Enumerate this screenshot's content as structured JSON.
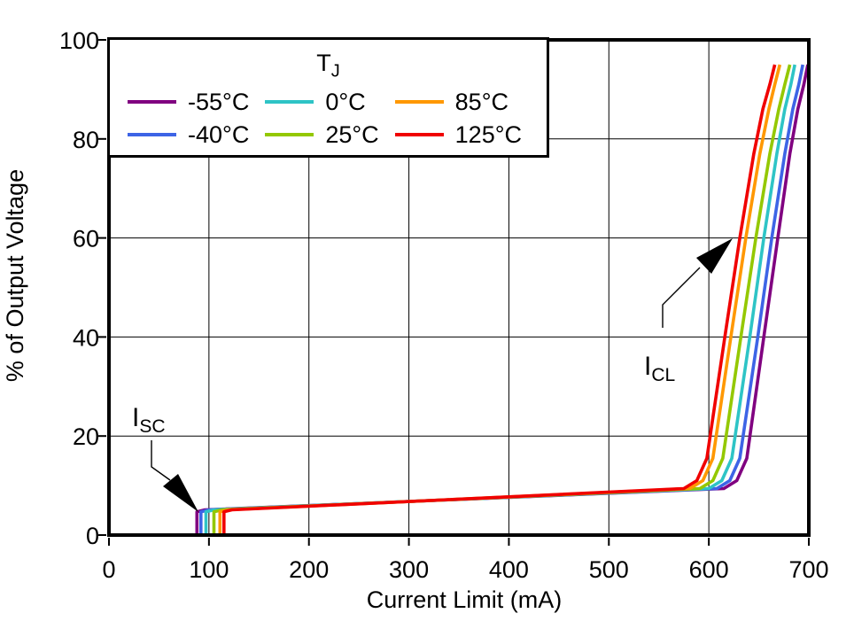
{
  "figure": {
    "background": "#ffffff",
    "axis_color": "#000000"
  },
  "chart_data": {
    "type": "line",
    "title": "",
    "xlabel": "Current Limit (mA)",
    "ylabel": "% of Output Voltage",
    "xlim": [
      0,
      700
    ],
    "ylim": [
      0,
      100
    ],
    "x_ticks": [
      0,
      100,
      200,
      300,
      400,
      500,
      600,
      700
    ],
    "y_ticks": [
      0,
      20,
      40,
      60,
      80,
      100
    ],
    "grid": true,
    "legend": {
      "title_main": "T",
      "title_sub": "J",
      "position": "top-left"
    },
    "series": [
      {
        "label": "-55°C",
        "color": "#800080",
        "isc_mA": 88,
        "icl_mA": 655,
        "points": [
          [
            88,
            0
          ],
          [
            88,
            4.7
          ],
          [
            96,
            5.1
          ],
          [
            615,
            9.4
          ],
          [
            628,
            11
          ],
          [
            638,
            15.5
          ],
          [
            655,
            40
          ],
          [
            669,
            60
          ],
          [
            681,
            77
          ],
          [
            689,
            86
          ],
          [
            695,
            91
          ],
          [
            699,
            95
          ]
        ]
      },
      {
        "label": "-40°C",
        "color": "#3D64E6",
        "isc_mA": 92,
        "icl_mA": 649,
        "points": [
          [
            92,
            0
          ],
          [
            92,
            4.7
          ],
          [
            100,
            5.1
          ],
          [
            608,
            9.4
          ],
          [
            621,
            11
          ],
          [
            631,
            15.5
          ],
          [
            649,
            40
          ],
          [
            663,
            60
          ],
          [
            676,
            77
          ],
          [
            684,
            86
          ],
          [
            690,
            91
          ],
          [
            694,
            95
          ]
        ]
      },
      {
        "label": "0°C",
        "color": "#2EC4C6",
        "isc_mA": 97,
        "icl_mA": 641,
        "points": [
          [
            97,
            0
          ],
          [
            97,
            4.7
          ],
          [
            105,
            5.1
          ],
          [
            600,
            9.4
          ],
          [
            613,
            11
          ],
          [
            623,
            15.5
          ],
          [
            641,
            40
          ],
          [
            655,
            60
          ],
          [
            668,
            77
          ],
          [
            676,
            86
          ],
          [
            682,
            91
          ],
          [
            686,
            95
          ]
        ]
      },
      {
        "label": "25°C",
        "color": "#94C800",
        "isc_mA": 105,
        "icl_mA": 632,
        "points": [
          [
            105,
            0
          ],
          [
            105,
            4.7
          ],
          [
            113,
            5.1
          ],
          [
            591,
            9.4
          ],
          [
            604,
            11
          ],
          [
            614,
            15.5
          ],
          [
            632,
            40
          ],
          [
            647,
            60
          ],
          [
            661,
            77
          ],
          [
            670,
            86
          ],
          [
            676,
            91
          ],
          [
            681,
            95
          ]
        ]
      },
      {
        "label": "85°C",
        "color": "#FF9800",
        "isc_mA": 111,
        "icl_mA": 622,
        "points": [
          [
            111,
            0
          ],
          [
            111,
            4.7
          ],
          [
            119,
            5.1
          ],
          [
            581,
            9.4
          ],
          [
            594,
            11
          ],
          [
            604,
            15.5
          ],
          [
            622,
            40
          ],
          [
            637,
            60
          ],
          [
            651,
            77
          ],
          [
            660,
            86
          ],
          [
            666,
            91
          ],
          [
            671,
            95
          ]
        ]
      },
      {
        "label": "125°C",
        "color": "#F00000",
        "isc_mA": 115,
        "icl_mA": 616,
        "points": [
          [
            115,
            0
          ],
          [
            115,
            4.7
          ],
          [
            123,
            5.1
          ],
          [
            575,
            9.4
          ],
          [
            588,
            11
          ],
          [
            598,
            15.5
          ],
          [
            616,
            40
          ],
          [
            631,
            60
          ],
          [
            645,
            77
          ],
          [
            654,
            86
          ],
          [
            661,
            91
          ],
          [
            666,
            95
          ]
        ]
      }
    ],
    "annotations": [
      {
        "main": "I",
        "sub": "SC"
      },
      {
        "main": "I",
        "sub": "CL"
      }
    ]
  }
}
